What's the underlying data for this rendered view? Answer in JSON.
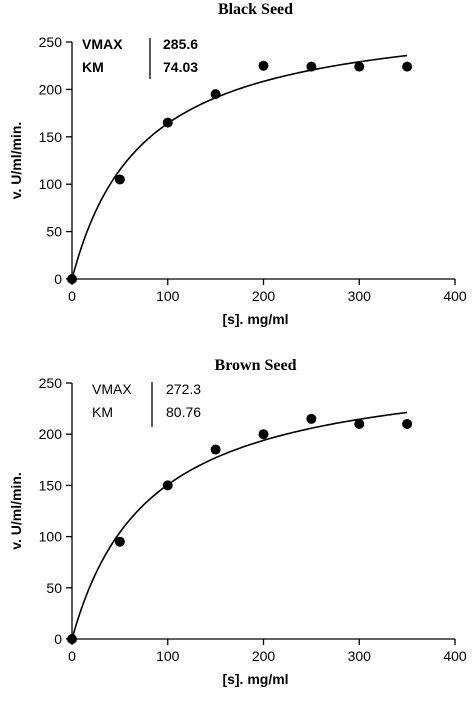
{
  "chart_data": [
    {
      "type": "scatter",
      "title": "Black Seed",
      "xlabel": "[s]. mg/ml",
      "ylabel": "v. U/ml/min.",
      "xlim": [
        0,
        400
      ],
      "ylim": [
        0,
        250
      ],
      "xticks": [
        0,
        100,
        200,
        300,
        400
      ],
      "yticks": [
        0,
        50,
        100,
        150,
        200,
        250
      ],
      "grid": false,
      "annotation": {
        "labels": [
          "VMAX",
          "KM"
        ],
        "values": [
          "285.6",
          "74.03"
        ],
        "style": "bold"
      },
      "fit": {
        "model": "michaelis-menten",
        "vmax": 285.6,
        "km": 74.03,
        "x_range": [
          0,
          350
        ]
      },
      "series": [
        {
          "x": [
            0,
            50,
            100,
            150,
            200,
            250,
            300,
            350
          ],
          "y": [
            0,
            105,
            165,
            195,
            225,
            224,
            224,
            224
          ]
        }
      ]
    },
    {
      "type": "scatter",
      "title": "Brown Seed",
      "xlabel": "[s]. mg/ml",
      "ylabel": "v. U/ml/min.",
      "xlim": [
        0,
        400
      ],
      "ylim": [
        0,
        250
      ],
      "xticks": [
        0,
        100,
        200,
        300,
        400
      ],
      "yticks": [
        0,
        50,
        100,
        150,
        200,
        250
      ],
      "grid": false,
      "annotation": {
        "labels": [
          "VMAX",
          "KM"
        ],
        "values": [
          "272.3",
          "80.76"
        ],
        "style": "plain"
      },
      "fit": {
        "model": "michaelis-menten",
        "vmax": 272.3,
        "km": 80.76,
        "x_range": [
          0,
          350
        ]
      },
      "series": [
        {
          "x": [
            0,
            50,
            100,
            150,
            200,
            250,
            300,
            350
          ],
          "y": [
            0,
            95,
            150,
            185,
            200,
            215,
            210,
            210
          ]
        }
      ]
    }
  ]
}
